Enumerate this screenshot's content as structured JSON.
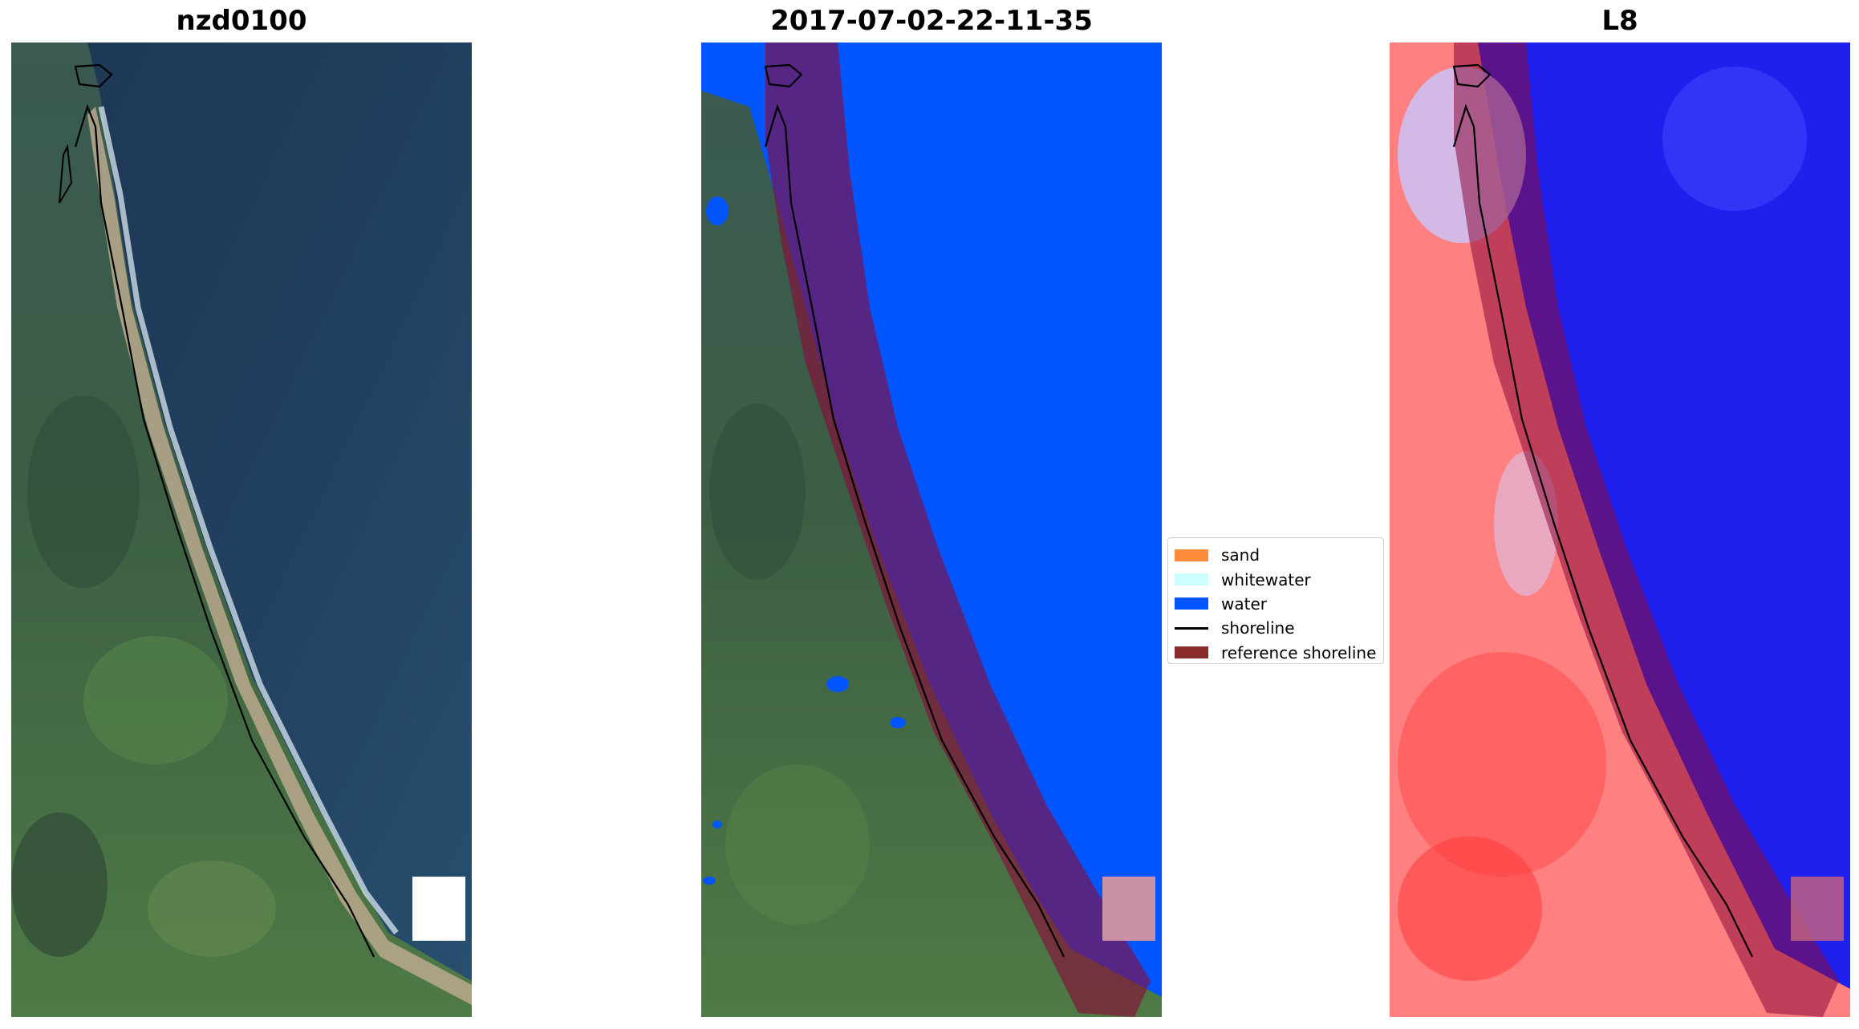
{
  "panels": [
    {
      "title": "nzd0100",
      "kind": "rgb"
    },
    {
      "title": "2017-07-02-22-11-35",
      "kind": "classified"
    },
    {
      "title": "L8",
      "kind": "index"
    }
  ],
  "legend": {
    "entries": [
      {
        "label": "sand",
        "color": "#ff8c3a",
        "type": "patch"
      },
      {
        "label": "whitewater",
        "color": "#ccffff",
        "type": "patch"
      },
      {
        "label": "water",
        "color": "#0055ff",
        "type": "patch"
      },
      {
        "label": "shoreline",
        "color": "#000000",
        "type": "line"
      },
      {
        "label": "reference shoreline",
        "color": "#8b2a2a",
        "type": "patch"
      }
    ]
  },
  "colors": {
    "ocean": "#1f3d5c",
    "land": "#3f6142",
    "water_class": "#0055ff",
    "reference_buffer": "#8b0a3a",
    "index_high": "#ff5555",
    "index_low": "#2222ee"
  }
}
